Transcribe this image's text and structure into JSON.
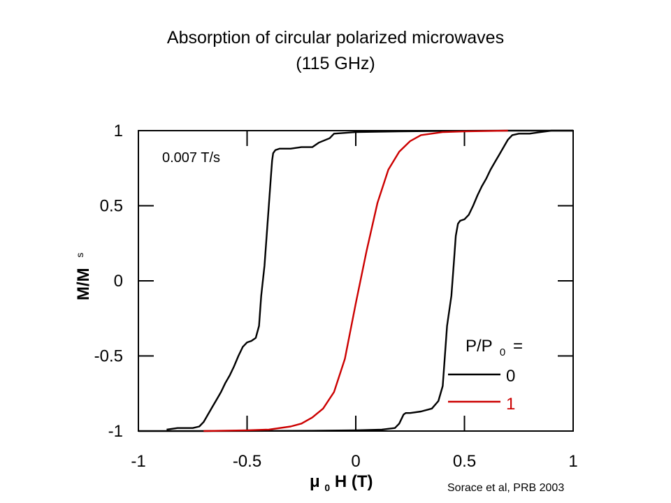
{
  "title_lines": [
    "Absorption of circular polarized microwaves",
    "(115 GHz)"
  ],
  "credit": "Sorace et al, PRB 2003",
  "chart_data": {
    "type": "line",
    "xlabel": {
      "main": "μ",
      "sub": "0",
      "rest": " H (T)"
    },
    "ylabel": {
      "main": "M/M",
      "sub": "s"
    },
    "xlim": [
      -1,
      1
    ],
    "ylim": [
      -1,
      1
    ],
    "xticks": [
      -1,
      -0.5,
      0,
      0.5,
      1
    ],
    "xtick_labels": [
      "-1",
      "-0.5",
      "0",
      "0.5",
      "1"
    ],
    "yticks": [
      1,
      0.5,
      0,
      -0.5,
      -1
    ],
    "ytick_labels": [
      "1",
      "0.5",
      "0",
      "-0.5",
      "-1"
    ],
    "annotation": "0.007 T/s",
    "legend": {
      "title": "P/P",
      "title_sub": "0",
      "title_suffix": " =",
      "placement": "bottom-right"
    },
    "series": [
      {
        "name": "0",
        "color": "#000000",
        "x": [
          -0.87,
          -0.82,
          -0.75,
          -0.72,
          -0.7,
          -0.68,
          -0.66,
          -0.64,
          -0.62,
          -0.6,
          -0.58,
          -0.56,
          -0.54,
          -0.52,
          -0.5,
          -0.48,
          -0.46,
          -0.445,
          -0.435,
          -0.42,
          -0.41,
          -0.4,
          -0.39,
          -0.385,
          -0.38,
          -0.37,
          -0.35,
          -0.3,
          -0.25,
          -0.2,
          -0.17,
          -0.12,
          -0.1,
          0.0,
          0.2,
          0.4,
          0.5,
          0.7,
          0.75,
          0.8,
          0.85,
          0.9,
          1.0
        ],
        "y": [
          -0.99,
          -0.98,
          -0.98,
          -0.97,
          -0.94,
          -0.89,
          -0.84,
          -0.79,
          -0.74,
          -0.68,
          -0.63,
          -0.57,
          -0.5,
          -0.44,
          -0.41,
          -0.4,
          -0.38,
          -0.3,
          -0.1,
          0.1,
          0.3,
          0.5,
          0.7,
          0.8,
          0.85,
          0.87,
          0.88,
          0.88,
          0.89,
          0.89,
          0.92,
          0.95,
          0.98,
          0.99,
          0.995,
          0.998,
          0.999,
          1.0,
          1.0,
          1.0,
          1.0,
          1.0,
          1.0
        ]
      },
      {
        "name": "0",
        "color": "#000000",
        "x": [
          -1.0,
          -0.7,
          -0.4,
          -0.2,
          0.0,
          0.12,
          0.18,
          0.2,
          0.21,
          0.22,
          0.23,
          0.25,
          0.3,
          0.35,
          0.38,
          0.4,
          0.41,
          0.42,
          0.44,
          0.45,
          0.46,
          0.47,
          0.48,
          0.5,
          0.52,
          0.54,
          0.56,
          0.58,
          0.6,
          0.62,
          0.64,
          0.66,
          0.68,
          0.7,
          0.72,
          0.75,
          0.8,
          0.85,
          0.9,
          1.0
        ],
        "y": [
          -1.0,
          -1.0,
          -0.999,
          -0.998,
          -0.995,
          -0.99,
          -0.98,
          -0.95,
          -0.92,
          -0.89,
          -0.88,
          -0.88,
          -0.87,
          -0.85,
          -0.8,
          -0.7,
          -0.5,
          -0.3,
          -0.1,
          0.1,
          0.3,
          0.38,
          0.4,
          0.41,
          0.44,
          0.5,
          0.57,
          0.63,
          0.68,
          0.74,
          0.79,
          0.84,
          0.89,
          0.94,
          0.97,
          0.98,
          0.98,
          0.99,
          1.0,
          1.0
        ]
      },
      {
        "name": "1",
        "color": "#cc0000",
        "x": [
          -0.7,
          -0.5,
          -0.4,
          -0.3,
          -0.25,
          -0.2,
          -0.15,
          -0.1,
          -0.05,
          0.0,
          0.05,
          0.1,
          0.15,
          0.2,
          0.25,
          0.3,
          0.4,
          0.5,
          0.7
        ],
        "y": [
          -1.0,
          -0.995,
          -0.99,
          -0.97,
          -0.95,
          -0.91,
          -0.85,
          -0.74,
          -0.52,
          -0.15,
          0.2,
          0.52,
          0.74,
          0.86,
          0.93,
          0.97,
          0.99,
          0.995,
          1.0
        ]
      }
    ]
  }
}
